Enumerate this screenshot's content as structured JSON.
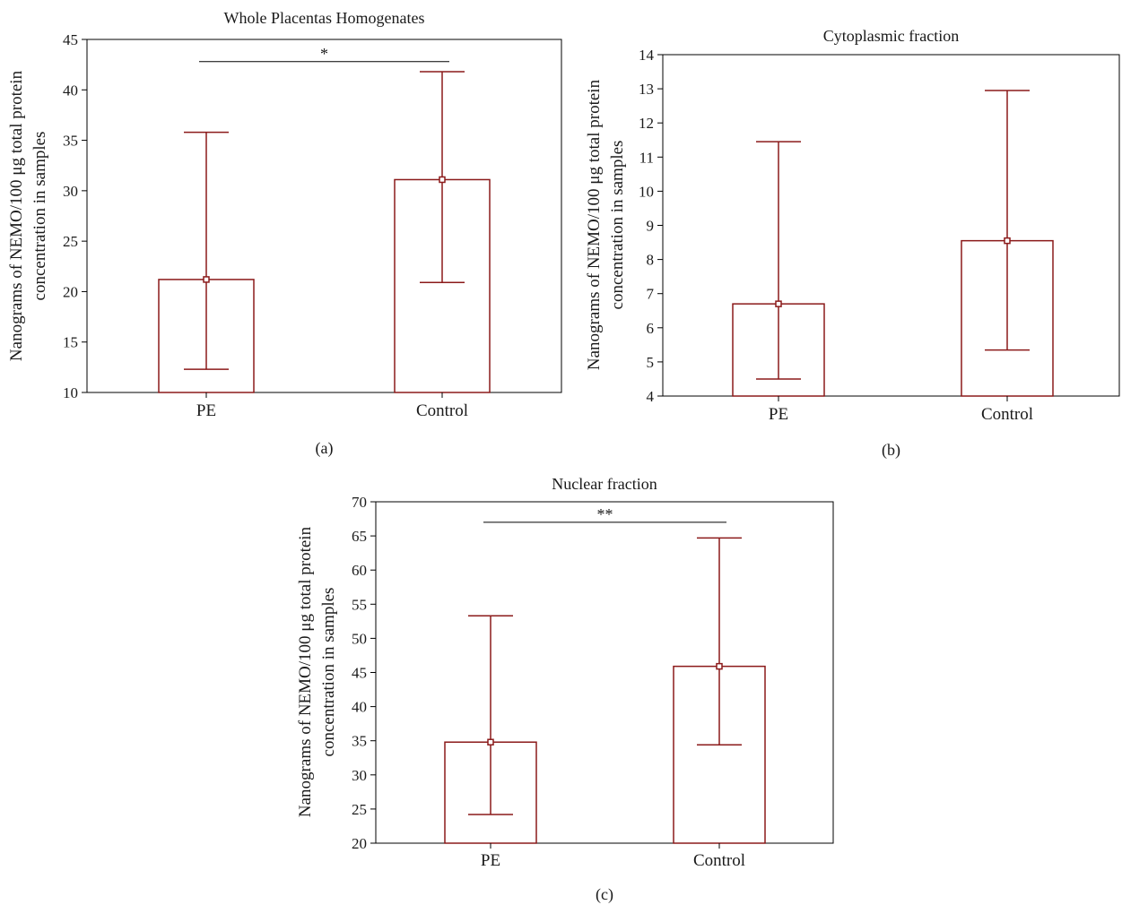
{
  "colors": {
    "bar": "#8b1a1a",
    "axis": "#000000",
    "sig": "#000000"
  },
  "chart_data": [
    {
      "type": "bar",
      "panel_label": "(a)",
      "title": "Whole Placentas Homogenates",
      "ylabel_lines": [
        "Nanograms of NEMO/100 μg total protein",
        "concentration in samples"
      ],
      "categories": [
        "PE",
        "Control"
      ],
      "values": [
        21.2,
        31.1
      ],
      "error_low": [
        12.3,
        20.9
      ],
      "error_high": [
        35.8,
        41.8
      ],
      "ylim": [
        10,
        45
      ],
      "yticks": [
        10,
        15,
        20,
        25,
        30,
        35,
        40,
        45
      ],
      "grid": false,
      "significance": {
        "label": "*",
        "y": 42.8,
        "from": "PE",
        "to": "Control"
      }
    },
    {
      "type": "bar",
      "panel_label": "(b)",
      "title": "Cytoplasmic fraction",
      "ylabel_lines": [
        "Nanograms of NEMO/100 μg total protein",
        "concentration in samples"
      ],
      "categories": [
        "PE",
        "Control"
      ],
      "values": [
        6.7,
        8.55
      ],
      "error_low": [
        4.5,
        5.35
      ],
      "error_high": [
        11.45,
        12.95
      ],
      "ylim": [
        4,
        14
      ],
      "yticks": [
        4,
        5,
        6,
        7,
        8,
        9,
        10,
        11,
        12,
        13,
        14
      ],
      "grid": false,
      "significance": null
    },
    {
      "type": "bar",
      "panel_label": "(c)",
      "title": "Nuclear fraction",
      "ylabel_lines": [
        "Nanograms of NEMO/100 μg total protein",
        "concentration in samples"
      ],
      "categories": [
        "PE",
        "Control"
      ],
      "values": [
        34.8,
        45.9
      ],
      "error_low": [
        24.2,
        34.4
      ],
      "error_high": [
        53.3,
        64.7
      ],
      "ylim": [
        20,
        70
      ],
      "yticks": [
        20,
        25,
        30,
        35,
        40,
        45,
        50,
        55,
        60,
        65,
        70
      ],
      "grid": false,
      "significance": {
        "label": "**",
        "y": 67,
        "from": "PE",
        "to": "Control"
      }
    }
  ]
}
